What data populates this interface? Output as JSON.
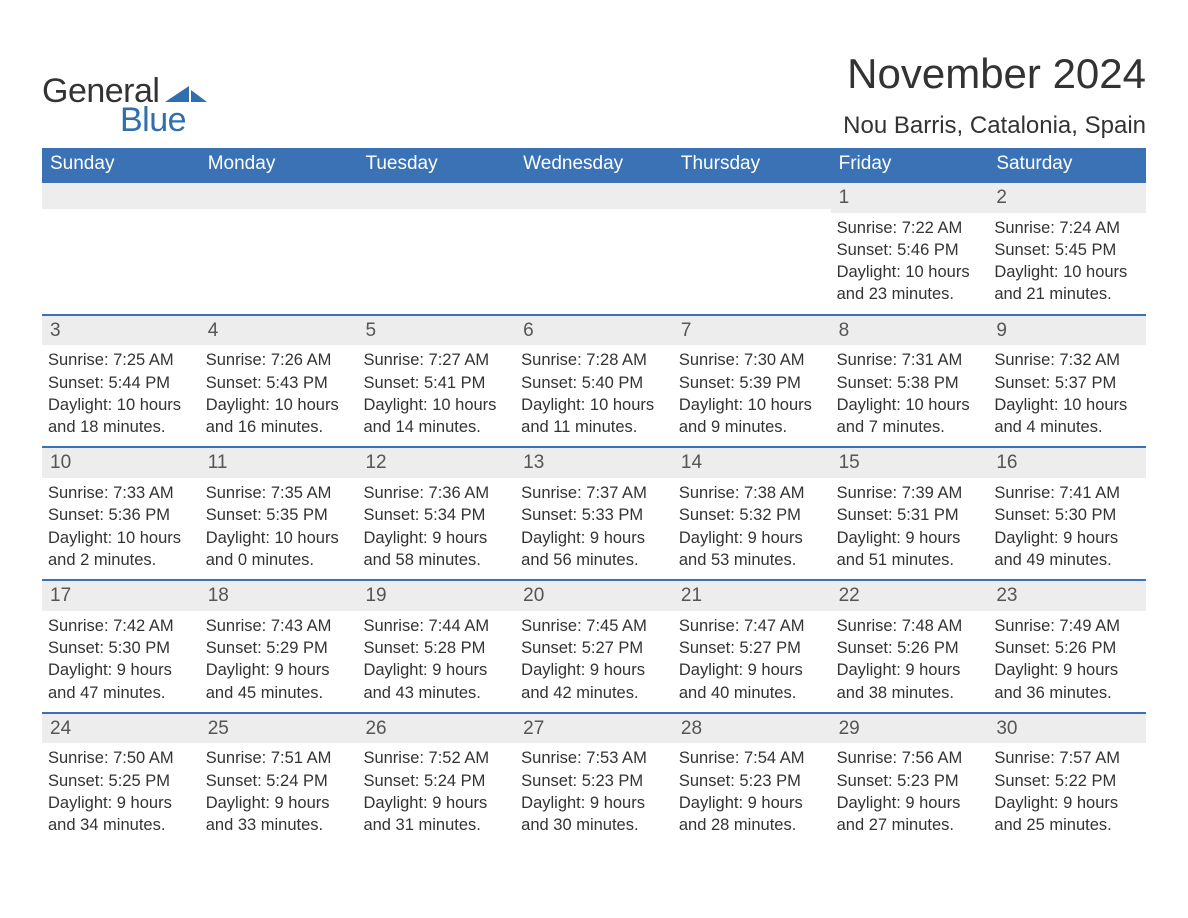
{
  "logo": {
    "general": "General",
    "blue": "Blue",
    "tri_color": "#2f6fb0"
  },
  "title": "November 2024",
  "location": "Nou Barris, Catalonia, Spain",
  "colors": {
    "header_bg": "#3a72b5",
    "row_bg": "#ededed",
    "text": "#333333",
    "accent": "#2f6fb0"
  },
  "layout": {
    "columns": 7,
    "rows": 5
  },
  "days_of_week": [
    "Sunday",
    "Monday",
    "Tuesday",
    "Wednesday",
    "Thursday",
    "Friday",
    "Saturday"
  ],
  "labels": {
    "sunrise": "Sunrise:",
    "sunset": "Sunset:",
    "daylight": "Daylight:"
  },
  "weeks": [
    [
      null,
      null,
      null,
      null,
      null,
      {
        "n": "1",
        "sunrise": "7:22 AM",
        "sunset": "5:46 PM",
        "daylight": "10 hours and 23 minutes."
      },
      {
        "n": "2",
        "sunrise": "7:24 AM",
        "sunset": "5:45 PM",
        "daylight": "10 hours and 21 minutes."
      }
    ],
    [
      {
        "n": "3",
        "sunrise": "7:25 AM",
        "sunset": "5:44 PM",
        "daylight": "10 hours and 18 minutes."
      },
      {
        "n": "4",
        "sunrise": "7:26 AM",
        "sunset": "5:43 PM",
        "daylight": "10 hours and 16 minutes."
      },
      {
        "n": "5",
        "sunrise": "7:27 AM",
        "sunset": "5:41 PM",
        "daylight": "10 hours and 14 minutes."
      },
      {
        "n": "6",
        "sunrise": "7:28 AM",
        "sunset": "5:40 PM",
        "daylight": "10 hours and 11 minutes."
      },
      {
        "n": "7",
        "sunrise": "7:30 AM",
        "sunset": "5:39 PM",
        "daylight": "10 hours and 9 minutes."
      },
      {
        "n": "8",
        "sunrise": "7:31 AM",
        "sunset": "5:38 PM",
        "daylight": "10 hours and 7 minutes."
      },
      {
        "n": "9",
        "sunrise": "7:32 AM",
        "sunset": "5:37 PM",
        "daylight": "10 hours and 4 minutes."
      }
    ],
    [
      {
        "n": "10",
        "sunrise": "7:33 AM",
        "sunset": "5:36 PM",
        "daylight": "10 hours and 2 minutes."
      },
      {
        "n": "11",
        "sunrise": "7:35 AM",
        "sunset": "5:35 PM",
        "daylight": "10 hours and 0 minutes."
      },
      {
        "n": "12",
        "sunrise": "7:36 AM",
        "sunset": "5:34 PM",
        "daylight": "9 hours and 58 minutes."
      },
      {
        "n": "13",
        "sunrise": "7:37 AM",
        "sunset": "5:33 PM",
        "daylight": "9 hours and 56 minutes."
      },
      {
        "n": "14",
        "sunrise": "7:38 AM",
        "sunset": "5:32 PM",
        "daylight": "9 hours and 53 minutes."
      },
      {
        "n": "15",
        "sunrise": "7:39 AM",
        "sunset": "5:31 PM",
        "daylight": "9 hours and 51 minutes."
      },
      {
        "n": "16",
        "sunrise": "7:41 AM",
        "sunset": "5:30 PM",
        "daylight": "9 hours and 49 minutes."
      }
    ],
    [
      {
        "n": "17",
        "sunrise": "7:42 AM",
        "sunset": "5:30 PM",
        "daylight": "9 hours and 47 minutes."
      },
      {
        "n": "18",
        "sunrise": "7:43 AM",
        "sunset": "5:29 PM",
        "daylight": "9 hours and 45 minutes."
      },
      {
        "n": "19",
        "sunrise": "7:44 AM",
        "sunset": "5:28 PM",
        "daylight": "9 hours and 43 minutes."
      },
      {
        "n": "20",
        "sunrise": "7:45 AM",
        "sunset": "5:27 PM",
        "daylight": "9 hours and 42 minutes."
      },
      {
        "n": "21",
        "sunrise": "7:47 AM",
        "sunset": "5:27 PM",
        "daylight": "9 hours and 40 minutes."
      },
      {
        "n": "22",
        "sunrise": "7:48 AM",
        "sunset": "5:26 PM",
        "daylight": "9 hours and 38 minutes."
      },
      {
        "n": "23",
        "sunrise": "7:49 AM",
        "sunset": "5:26 PM",
        "daylight": "9 hours and 36 minutes."
      }
    ],
    [
      {
        "n": "24",
        "sunrise": "7:50 AM",
        "sunset": "5:25 PM",
        "daylight": "9 hours and 34 minutes."
      },
      {
        "n": "25",
        "sunrise": "7:51 AM",
        "sunset": "5:24 PM",
        "daylight": "9 hours and 33 minutes."
      },
      {
        "n": "26",
        "sunrise": "7:52 AM",
        "sunset": "5:24 PM",
        "daylight": "9 hours and 31 minutes."
      },
      {
        "n": "27",
        "sunrise": "7:53 AM",
        "sunset": "5:23 PM",
        "daylight": "9 hours and 30 minutes."
      },
      {
        "n": "28",
        "sunrise": "7:54 AM",
        "sunset": "5:23 PM",
        "daylight": "9 hours and 28 minutes."
      },
      {
        "n": "29",
        "sunrise": "7:56 AM",
        "sunset": "5:23 PM",
        "daylight": "9 hours and 27 minutes."
      },
      {
        "n": "30",
        "sunrise": "7:57 AM",
        "sunset": "5:22 PM",
        "daylight": "9 hours and 25 minutes."
      }
    ]
  ]
}
